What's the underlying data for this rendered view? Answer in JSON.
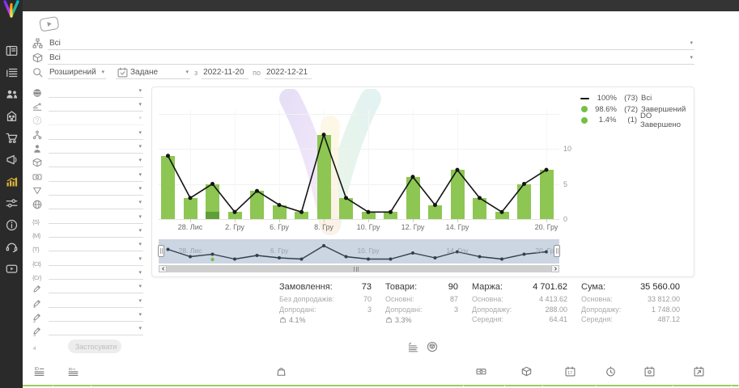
{
  "theme": {
    "green": "#8dc653",
    "green_dark": "#5f9f37",
    "line": "#141414",
    "legend_green": "#74c044",
    "sidebar_active": "#d9b43a",
    "nav_bg": "#ccd5e2",
    "table_edge_green": "#9ccc65"
  },
  "filters": {
    "source": {
      "icon": "hierarchy-icon",
      "value": "Всі"
    },
    "product": {
      "icon": "package-icon",
      "value": "Всі"
    },
    "mode": {
      "icon": "search-icon",
      "value": "Розширений"
    },
    "date": {
      "icon": "calendar-check-icon",
      "mode": "Задане",
      "from_label": "з",
      "from": "2022-11-20",
      "to_label": "по",
      "to": "2022-12-21"
    },
    "apply": "Застосувати",
    "panel": [
      {
        "icon": "globe-solid"
      },
      {
        "icon": "level"
      },
      {
        "icon": "question",
        "disabled": true
      },
      {
        "icon": "org"
      },
      {
        "icon": "person"
      },
      {
        "icon": "package"
      },
      {
        "icon": "banknote"
      },
      {
        "icon": "funnel"
      },
      {
        "icon": "globe"
      },
      {
        "icon": "text",
        "glyph": "{S}"
      },
      {
        "icon": "text",
        "glyph": "{M}"
      },
      {
        "icon": "text",
        "glyph": "{T}"
      },
      {
        "icon": "text",
        "glyph": "{Ct}"
      },
      {
        "icon": "text",
        "glyph": "{Cr}"
      },
      {
        "icon": "pencil",
        "sub": "1"
      },
      {
        "icon": "pencil",
        "sub": "2"
      },
      {
        "icon": "pencil",
        "sub": "3"
      },
      {
        "icon": "pencil",
        "sub": "4"
      }
    ]
  },
  "sidebar": {
    "items": [
      {
        "icon": "dashboard"
      },
      {
        "icon": "orders-list"
      },
      {
        "icon": "customers"
      },
      {
        "icon": "company"
      },
      {
        "icon": "cart"
      },
      {
        "icon": "broadcast"
      },
      {
        "icon": "analytics",
        "active": true
      },
      {
        "icon": "settings"
      },
      {
        "icon": "info"
      },
      {
        "icon": "support"
      },
      {
        "icon": "video"
      }
    ]
  },
  "chart_data": {
    "type": "bar+line",
    "x_count": 18,
    "tick_labels": [
      {
        "i": 1,
        "t": "28. Лис"
      },
      {
        "i": 3,
        "t": "2. Гру"
      },
      {
        "i": 5,
        "t": "6. Гру"
      },
      {
        "i": 7,
        "t": "8. Гру"
      },
      {
        "i": 9,
        "t": "10. Гру"
      },
      {
        "i": 11,
        "t": "12. Гру"
      },
      {
        "i": 13,
        "t": "14. Гру"
      },
      {
        "i": 17,
        "t": "20. Гру"
      }
    ],
    "nav_labels": [
      {
        "i": 1,
        "t": "28. Лис"
      },
      {
        "i": 5,
        "t": "6. Гру"
      },
      {
        "i": 9,
        "t": "10. Гру"
      },
      {
        "i": 13,
        "t": "14. Гру"
      },
      {
        "i": 17,
        "t": "20. Гру"
      }
    ],
    "series": [
      {
        "name": "Всі",
        "type": "line",
        "color": "#141414",
        "values": [
          9,
          3,
          5,
          1,
          4,
          2,
          1,
          12,
          3,
          1,
          1,
          6,
          2,
          7,
          3,
          1,
          5,
          7
        ]
      },
      {
        "name": "Завершений",
        "type": "bar",
        "color": "#8dc653",
        "values": [
          9,
          3,
          4,
          1,
          4,
          2,
          1,
          12,
          3,
          1,
          1,
          6,
          2,
          7,
          3,
          1,
          5,
          7
        ]
      },
      {
        "name": "DO Завершено",
        "type": "bar",
        "color": "#5f9f37",
        "values": [
          0,
          0,
          1,
          0,
          0,
          0,
          0,
          0,
          0,
          0,
          0,
          0,
          0,
          0,
          0,
          0,
          0,
          0
        ]
      }
    ],
    "ylim": [
      0,
      15
    ],
    "yticks": [
      0,
      5,
      10
    ],
    "gridlines": [
      0,
      5,
      10,
      15
    ],
    "grid": true,
    "legend_position": "top-right",
    "legend": [
      {
        "marker": "line",
        "pct": "100%",
        "count": "(73)",
        "name": "Всі"
      },
      {
        "marker": "dot",
        "pct": "98.6%",
        "count": "(72)",
        "name": "Завершений"
      },
      {
        "marker": "dot",
        "pct": "1.4%",
        "count": "(1)",
        "name": "DO Завершено"
      }
    ]
  },
  "stats": [
    {
      "title": "Замовлення:",
      "value": "73",
      "rows": [
        [
          "Без допродажів:",
          "70"
        ],
        [
          "Допродані:",
          "3"
        ]
      ],
      "pct": "4.1%"
    },
    {
      "title": "Товари:",
      "value": "90",
      "rows": [
        [
          "Основні:",
          "87"
        ],
        [
          "Допродані:",
          "3"
        ]
      ],
      "pct": "3.3%"
    },
    {
      "title": "Маржа:",
      "value": "4 701.62",
      "rows": [
        [
          "Основна:",
          "4 413.62"
        ],
        [
          "Допродажу:",
          "288.00"
        ],
        [
          "Середня:",
          "64.41"
        ]
      ]
    },
    {
      "title": "Сума:",
      "value": "35 560.00",
      "rows": [
        [
          "Основна:",
          "33 812.00"
        ],
        [
          "Допродажу:",
          "1 748.00"
        ],
        [
          "Середня:",
          "487.12"
        ]
      ]
    }
  ],
  "view_toggles": [
    {
      "icon": "report-list"
    },
    {
      "icon": "product-circle"
    }
  ],
  "bottom_toolbar": [
    {
      "icon": "id-lines"
    },
    {
      "icon": "id-o-lines"
    },
    {
      "icon": "bag"
    },
    {
      "icon": "money"
    },
    {
      "icon": "package"
    },
    {
      "icon": "calendar-17"
    },
    {
      "icon": "clock"
    },
    {
      "icon": "calendar-dot"
    },
    {
      "icon": "calendar-arrow"
    }
  ]
}
